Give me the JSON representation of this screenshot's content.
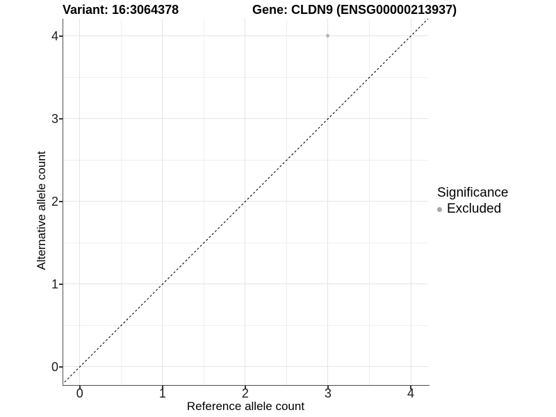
{
  "titles": {
    "variant": "Variant: 16:3064378",
    "gene": "Gene: CLDN9 (ENSG00000213937)"
  },
  "legend": {
    "title": "Significance",
    "items": [
      {
        "label": "Excluded",
        "color": "#a6a6a6"
      }
    ]
  },
  "colors": {
    "point": "#b3b3b3",
    "grid_major": "#e4e4e4",
    "grid_minor": "#f0f0f0",
    "axis_line": "#4d4d4d",
    "reference_line": "#000000"
  },
  "chart_data": {
    "type": "scatter",
    "title": "Variant: 16:3064378   Gene: CLDN9 (ENSG00000213937)",
    "xlabel": "Reference allele count",
    "ylabel": "Alternative allele count",
    "xlim": [
      -0.2,
      4.21
    ],
    "ylim": [
      -0.22,
      4.21
    ],
    "x_ticks": [
      0,
      1,
      2,
      3,
      4
    ],
    "y_ticks": [
      0,
      1,
      2,
      3,
      4
    ],
    "grid": true,
    "minor_grid": true,
    "legend_position": "right",
    "series": [
      {
        "name": "Excluded",
        "color": "#b3b3b3",
        "points": [
          {
            "x": 3,
            "y": 4
          }
        ]
      }
    ],
    "reference_line": {
      "type": "identity y=x",
      "style": "dashed",
      "color": "#000000"
    }
  }
}
